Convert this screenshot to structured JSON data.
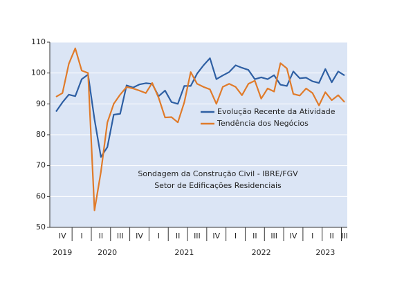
{
  "chart_data": {
    "type": "line",
    "annotations": [
      "Sondagem da Construção Civil - IBRE/FGV",
      "Setor de Edificações Residenciais"
    ],
    "categories": [
      null,
      "IV",
      null,
      null,
      "I",
      null,
      null,
      "II",
      null,
      null,
      "III",
      null,
      null,
      "IV",
      null,
      null,
      "I",
      null,
      null,
      "II",
      null,
      null,
      "III",
      null,
      null,
      "IV",
      null,
      null,
      "I",
      null,
      null,
      "II",
      null,
      null,
      "III",
      null,
      null,
      "IV",
      null,
      null,
      "I",
      null,
      null,
      "II",
      null,
      "III"
    ],
    "year_categories": [
      null,
      "2019",
      null,
      null,
      null,
      null,
      null,
      null,
      "2020",
      null,
      null,
      null,
      null,
      null,
      null,
      null,
      null,
      null,
      null,
      null,
      "2021",
      null,
      null,
      null,
      null,
      null,
      null,
      null,
      null,
      null,
      null,
      null,
      "2022",
      null,
      null,
      null,
      null,
      null,
      null,
      null,
      null,
      null,
      "2023",
      null,
      null,
      null
    ],
    "series": [
      {
        "name": "Evolução Recente da Atividade",
        "color": "#2e5fa3",
        "values": [
          87.5,
          90.5,
          93,
          92.5,
          98,
          99.5,
          85,
          72.8,
          76,
          86.5,
          86.8,
          96,
          95.3,
          96.3,
          96.7,
          96.5,
          92.5,
          94.3,
          90.6,
          90,
          95.8,
          95.8,
          99.8,
          102.5,
          104.8,
          98,
          99.2,
          100.3,
          102.5,
          101.7,
          101,
          98,
          98.6,
          98,
          99.3,
          96.2,
          95.8,
          100.5,
          98.3,
          98.5,
          97.3,
          96.8,
          101.3,
          97,
          100.5,
          99.2
        ]
      },
      {
        "name": "Tendência dos Negócios",
        "color": "#e07b2a",
        "values": [
          92.3,
          93.5,
          103,
          108,
          100.8,
          100,
          55.5,
          68,
          84,
          90,
          93,
          95.5,
          95,
          94.3,
          93.5,
          96.8,
          92,
          85.6,
          85.7,
          84,
          90.5,
          100.3,
          96.5,
          95.5,
          94.7,
          90,
          95.5,
          96.5,
          95.5,
          92.8,
          96.5,
          97.5,
          91.7,
          95,
          94,
          103.2,
          101.5,
          93.2,
          92.7,
          95,
          93.5,
          89.5,
          93.8,
          91.2,
          92.8,
          90.6
        ]
      }
    ],
    "ylim": [
      50,
      110
    ],
    "yticks": [
      50,
      60,
      70,
      80,
      90,
      100,
      110
    ],
    "grid": true,
    "background": "#dbe5f5"
  }
}
